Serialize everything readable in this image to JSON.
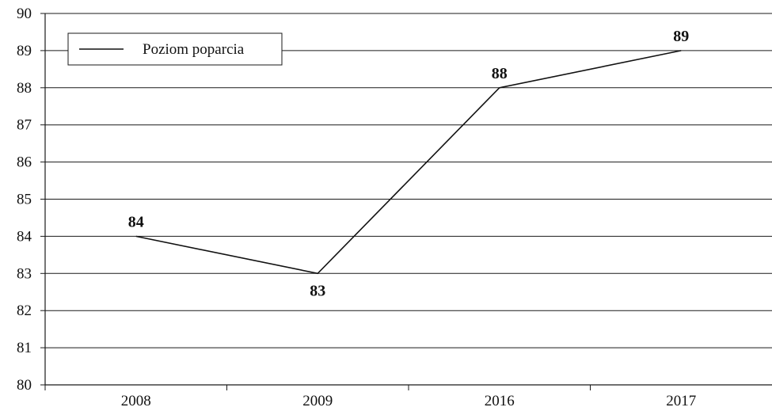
{
  "chart_data": {
    "type": "line",
    "categories": [
      "2008",
      "2009",
      "2016",
      "2017"
    ],
    "series": [
      {
        "name": "Poziom poparcia",
        "values": [
          84,
          83,
          88,
          89
        ],
        "data_labels": [
          "84",
          "83",
          "88",
          "89"
        ],
        "color": "#111111"
      }
    ],
    "y_ticks": [
      "80",
      "81",
      "82",
      "83",
      "84",
      "85",
      "86",
      "87",
      "88",
      "89",
      "90"
    ],
    "ylim": [
      80,
      90
    ],
    "grid": true,
    "legend_position": "top-left",
    "title": "",
    "xlabel": "",
    "ylabel": ""
  }
}
